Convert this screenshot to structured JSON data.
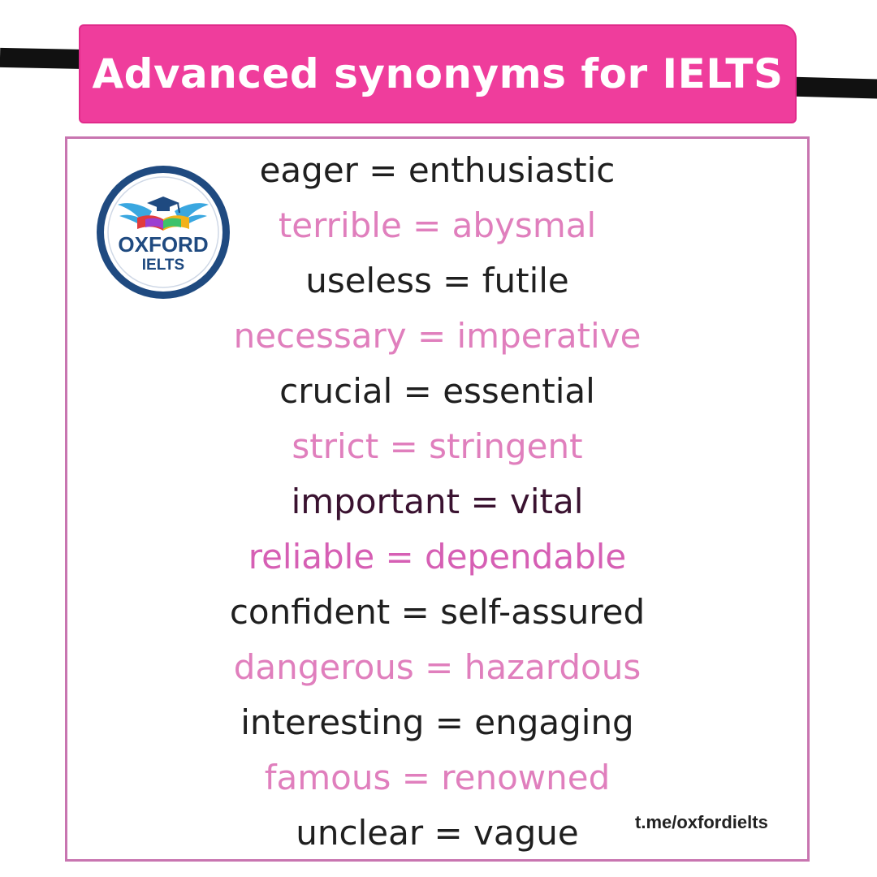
{
  "title": "Advanced synonyms for IELTS",
  "logo": {
    "line1": "OXFORD",
    "line2": "IELTS"
  },
  "rows": [
    {
      "text": "eager = enthusiastic",
      "color": "#1f1f1f"
    },
    {
      "text": "terrible = abysmal",
      "color": "#e07fbd"
    },
    {
      "text": "useless = futile",
      "color": "#1f1f1f"
    },
    {
      "text": "necessary = imperative",
      "color": "#e07fbd"
    },
    {
      "text": "crucial = essential",
      "color": "#1f1f1f"
    },
    {
      "text": "strict = stringent",
      "color": "#e07fbd"
    },
    {
      "text": "important = vital",
      "color": "#3a1230"
    },
    {
      "text": "reliable = dependable",
      "color": "#d65fb4"
    },
    {
      "text": "confident = self-assured",
      "color": "#1f1f1f"
    },
    {
      "text": "dangerous = hazardous",
      "color": "#e07fbd"
    },
    {
      "text": "interesting = engaging",
      "color": "#1f1f1f"
    },
    {
      "text": "famous = renowned",
      "color": "#e07fbd"
    },
    {
      "text": "unclear = vague",
      "color": "#1f1f1f"
    }
  ],
  "footer": {
    "link": "t.me/oxfordielts"
  },
  "colors": {
    "banner": "#ef3d9c",
    "border": "#c875b0",
    "logo_ring": "#1f4a80"
  }
}
